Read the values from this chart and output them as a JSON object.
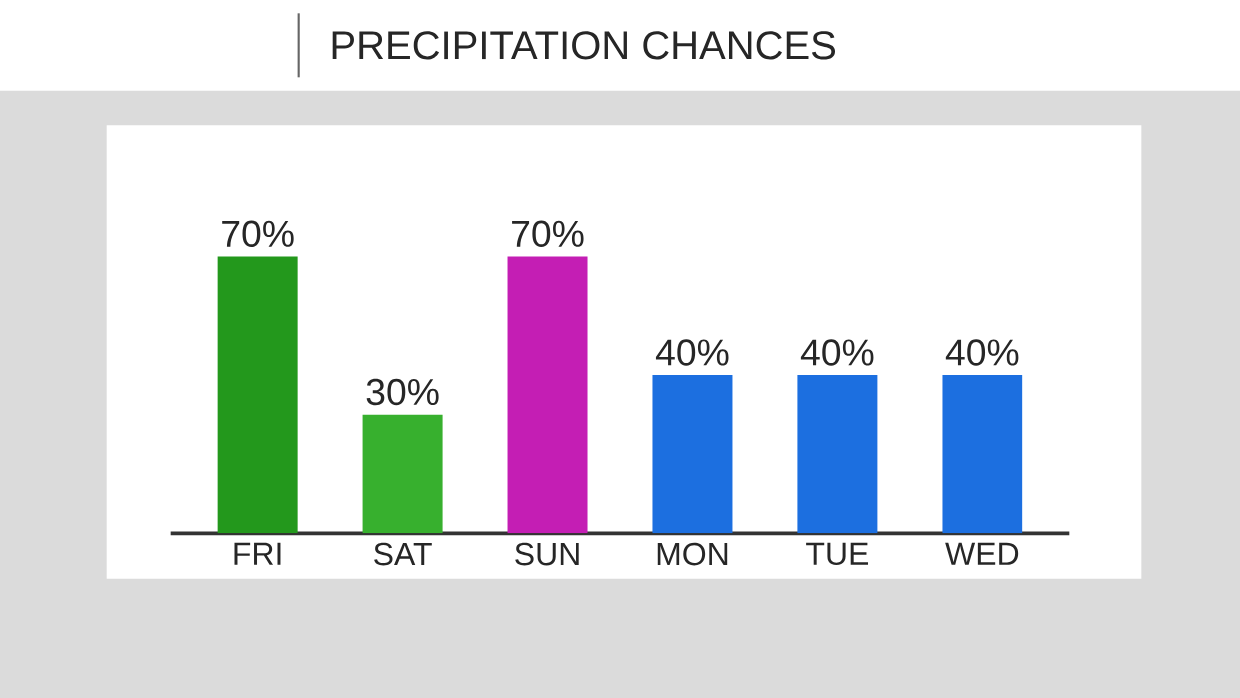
{
  "chart_data": {
    "type": "bar",
    "title": "PRECIPITATION CHANCES",
    "categories": [
      "FRI",
      "SAT",
      "SUN",
      "MON",
      "TUE",
      "WED"
    ],
    "values": [
      70,
      30,
      70,
      40,
      40,
      40
    ],
    "value_labels": [
      "70%",
      "30%",
      "70%",
      "40%",
      "40%",
      "40%"
    ],
    "colors": [
      "#23981c",
      "#37b02e",
      "#c41eb4",
      "#1c6fe0",
      "#1c6fe0",
      "#1c6fe0"
    ]
  }
}
